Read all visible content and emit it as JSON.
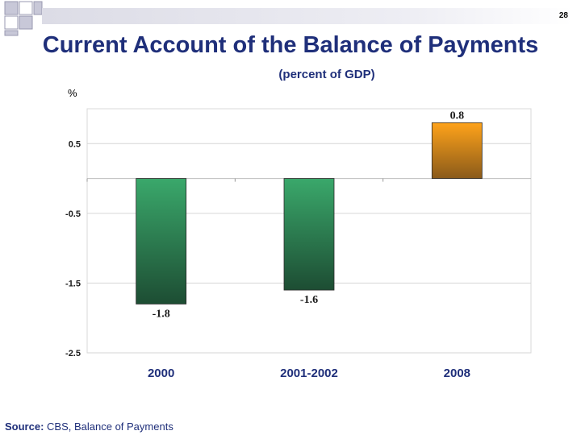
{
  "slide_number": "28",
  "title": "Current Account of the Balance of Payments",
  "subtitle": "(percent of GDP)",
  "source_prefix": "Source:",
  "source_text": " CBS, Balance of Payments",
  "colors": {
    "green_top": "#3aa86b",
    "green_bottom": "#1d4d33",
    "orange_top": "#ffa31a",
    "orange_bottom": "#8a5a1a",
    "title": "#1f2f7a"
  },
  "chart_data": {
    "type": "bar",
    "title": "Current Account of the Balance of Payments",
    "subtitle": "(percent of GDP)",
    "ylabel": "%",
    "xlabel": "",
    "categories": [
      "2000",
      "2001-2002",
      "2008"
    ],
    "values": [
      -1.8,
      -1.6,
      0.8
    ],
    "data_labels": [
      "-1.8",
      "-1.6",
      "0.8"
    ],
    "bar_colors": [
      "green",
      "green",
      "orange"
    ],
    "ylim": [
      -2.5,
      1.0
    ],
    "yticks": [
      0.5,
      -0.5,
      -1.5,
      -2.5
    ],
    "ytick_labels": [
      "0.5",
      "-0.5",
      "-1.5",
      "-2.5"
    ],
    "grid": true,
    "legend": "none"
  }
}
